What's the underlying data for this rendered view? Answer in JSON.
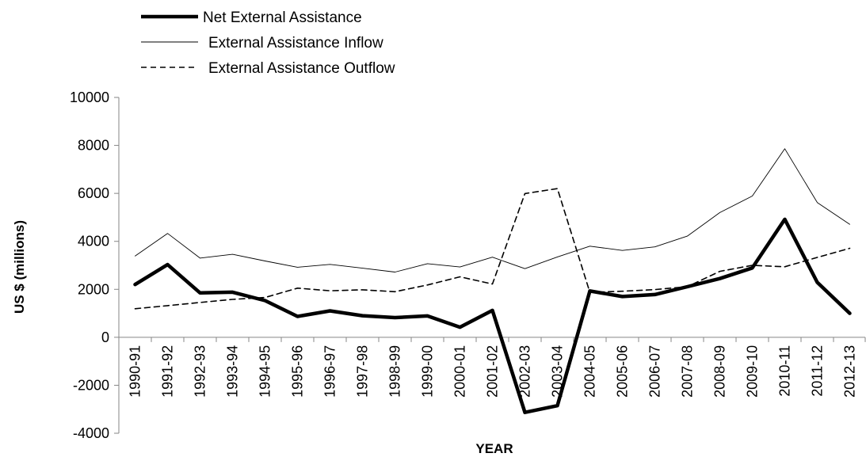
{
  "chart_data": {
    "type": "line",
    "title": "",
    "xlabel": "YEAR",
    "ylabel": "US $ (millions)",
    "ylim": [
      -4000,
      10000
    ],
    "yticks": [
      -4000,
      -2000,
      0,
      2000,
      4000,
      6000,
      8000,
      10000
    ],
    "grid": false,
    "legend_position": "top-left",
    "categories": [
      "1990-91",
      "1991-92",
      "1992-93",
      "1993-94",
      "1994-95",
      "1995-96",
      "1996-97",
      "1997-98",
      "1998-99",
      "1999-00",
      "2000-01",
      "2001-02",
      "2002-03",
      "2003-04",
      "2004-05",
      "2005-06",
      "2006-07",
      "2007-08",
      "2008-09",
      "2009-10",
      "2010-11",
      "2011-12",
      "2012-13"
    ],
    "series": [
      {
        "name": "Net External Assistance",
        "style": "solid-thick",
        "color": "#000000",
        "values": [
          2200,
          3030,
          1850,
          1880,
          1530,
          870,
          1100,
          900,
          820,
          890,
          420,
          1120,
          -3130,
          -2850,
          1930,
          1700,
          1780,
          2110,
          2450,
          2890,
          4920,
          2290,
          1000
        ]
      },
      {
        "name": "External Assistance Inflow",
        "style": "solid-thin",
        "color": "#000000",
        "values": [
          3390,
          4330,
          3300,
          3460,
          3180,
          2920,
          3040,
          2880,
          2720,
          3070,
          2930,
          3340,
          2860,
          3350,
          3800,
          3620,
          3770,
          4220,
          5200,
          5890,
          7860,
          5620,
          4710
        ]
      },
      {
        "name": "External Assistance Outflow",
        "style": "dashed",
        "color": "#000000",
        "values": [
          1190,
          1320,
          1450,
          1580,
          1660,
          2050,
          1940,
          1980,
          1900,
          2180,
          2520,
          2220,
          5990,
          6200,
          1870,
          1920,
          1990,
          2110,
          2750,
          3000,
          2940,
          3330,
          3710
        ]
      }
    ]
  }
}
